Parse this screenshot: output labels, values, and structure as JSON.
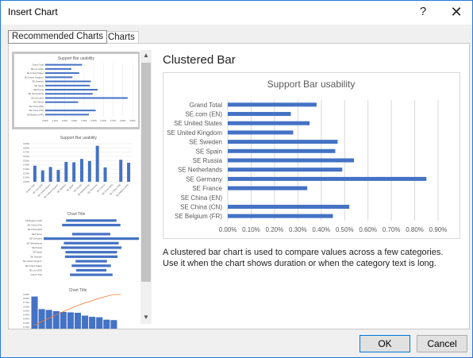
{
  "window": {
    "title": "Insert Chart",
    "help_label": "?",
    "close_label": "✕"
  },
  "tabs": [
    {
      "label": "Recommended Charts"
    },
    {
      "label": "All Charts"
    }
  ],
  "scrollbar": {
    "up_glyph": "▲",
    "down_glyph": "▼"
  },
  "detail": {
    "heading": "Clustered Bar",
    "description": "A clustered bar chart is used to compare values across a few categories. Use it when the chart shows duration or when the category text is long."
  },
  "buttons": {
    "ok_label": "OK",
    "cancel_label": "Cancel"
  },
  "thumbnails": [
    {
      "kind": "clustered-bar",
      "title": "Support Bar usability"
    },
    {
      "kind": "clustered-column",
      "title": "Support Bar usability"
    },
    {
      "kind": "funnel",
      "title": "Chart Title"
    },
    {
      "kind": "pareto",
      "title": "Chart Title"
    }
  ],
  "colors": {
    "bar": "#4472c4",
    "pareto_line": "#ed7d31",
    "gridline": "#d9d9d9",
    "accent_border": "#0078d7"
  },
  "chart_data": {
    "type": "bar",
    "title": "Support Bar usability",
    "categories": [
      "Grand Total",
      "SE.com (EN)",
      "SE United States",
      "SE United Kingdom",
      "SE Sweden",
      "SE Spain",
      "SE Russia",
      "SE Netherlands",
      "SE Germany",
      "SE France",
      "SE China (EN)",
      "SE China (CN)",
      "SE Belgium (FR)"
    ],
    "values": [
      0.0038,
      0.0027,
      0.0035,
      0.0028,
      0.0047,
      0.0046,
      0.0054,
      0.0049,
      0.0085,
      0.0034,
      0.0,
      0.0052,
      0.0045
    ],
    "xlim": [
      0,
      0.009
    ],
    "xticks": [
      "0.00%",
      "0.10%",
      "0.20%",
      "0.30%",
      "0.40%",
      "0.50%",
      "0.60%",
      "0.70%",
      "0.80%",
      "0.90%"
    ],
    "grid": true
  }
}
